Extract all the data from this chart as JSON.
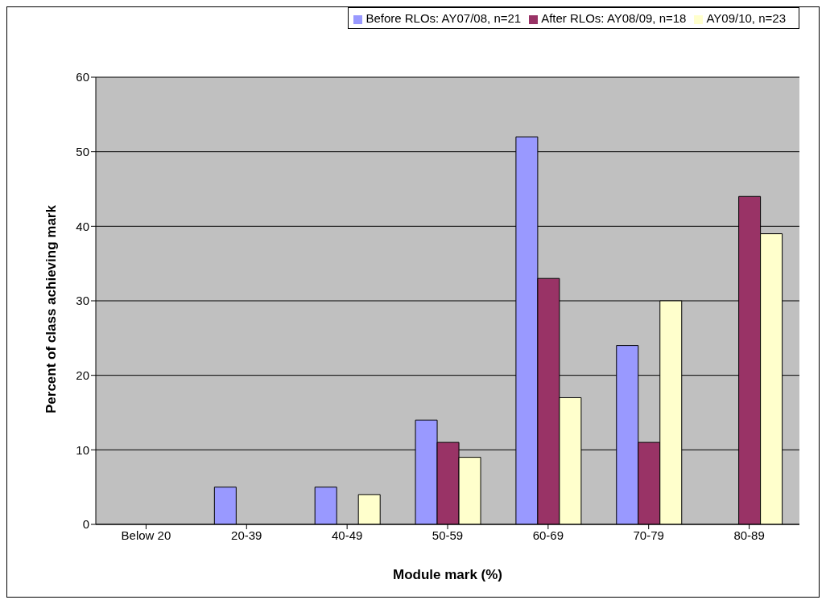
{
  "chart_data": {
    "type": "bar",
    "xlabel": "Module mark (%)",
    "ylabel": "Percent of class achieving mark",
    "categories": [
      "Below 20",
      "20-39",
      "40-49",
      "50-59",
      "60-69",
      "70-79",
      "80-89"
    ],
    "series": [
      {
        "name": "Before RLOs: AY07/08, n=21",
        "color": "#9999ff",
        "values": [
          0,
          5,
          5,
          14,
          52,
          24,
          0
        ]
      },
      {
        "name": "After RLOs: AY08/09, n=18",
        "color": "#993366",
        "values": [
          0,
          0,
          0,
          11,
          33,
          11,
          44
        ]
      },
      {
        "name": "AY09/10, n=23",
        "color": "#ffffcc",
        "values": [
          0,
          0,
          4,
          9,
          17,
          30,
          39
        ]
      }
    ],
    "ylim": [
      0,
      60
    ],
    "yticks": [
      0,
      10,
      20,
      30,
      40,
      50,
      60
    ],
    "grid": "y",
    "legend": "top right"
  }
}
